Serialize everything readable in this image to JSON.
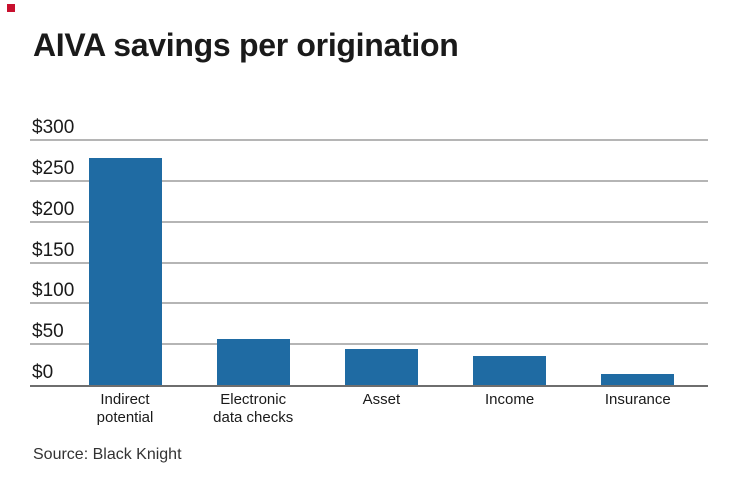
{
  "page": {
    "background": "#ffffff",
    "brand_mark_color": "#c8102e"
  },
  "header": {
    "title": "AIVA savings per origination"
  },
  "source": {
    "label": "Source: Black Knight"
  },
  "chart_data": {
    "type": "bar",
    "title": "AIVA savings per origination",
    "categories": [
      [
        "Indirect",
        "potential"
      ],
      [
        "Electronic",
        "data checks"
      ],
      [
        "Asset"
      ],
      [
        "Income"
      ],
      [
        "Insurance"
      ]
    ],
    "values": [
      279,
      57,
      45,
      37,
      15
    ],
    "unit": "$",
    "xlabel": "",
    "ylabel": "",
    "ylim": [
      0,
      300
    ],
    "yticks": [
      0,
      50,
      100,
      150,
      200,
      250,
      300
    ],
    "ytick_labels": [
      "$0",
      "$50",
      "$100",
      "$150",
      "$200",
      "$250",
      "$300"
    ],
    "grid": true,
    "legend": false,
    "bar_color": "#1f6ba3",
    "gridline_color": "#b5b5b5",
    "axis_line_color": "#6e6e6e",
    "source": "Source: Black Knight"
  }
}
